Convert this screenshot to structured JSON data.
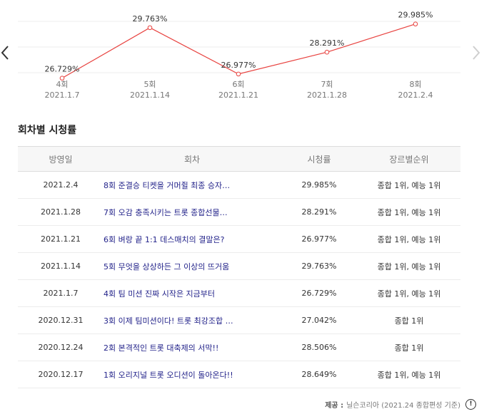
{
  "chart_data": {
    "type": "line",
    "categories": [
      "4회",
      "5회",
      "6회",
      "7회",
      "8회"
    ],
    "dates": [
      "2021.1.7",
      "2021.1.14",
      "2021.1.21",
      "2021.1.28",
      "2021.2.4"
    ],
    "values": [
      26.729,
      29.763,
      26.977,
      28.291,
      29.985
    ],
    "value_labels": [
      "26.729%",
      "29.763%",
      "26.977%",
      "28.291%",
      "29.985%"
    ],
    "ylim": [
      25.0,
      31.0
    ],
    "line_color": "#e8423f",
    "grid": true
  },
  "nav": {
    "prev_icon": "chevron-left-icon",
    "next_icon": "chevron-right-icon"
  },
  "section": {
    "title": "회차별 시청률"
  },
  "table": {
    "headers": [
      "방영일",
      "회차",
      "시청률",
      "장르별순위"
    ],
    "rows": [
      {
        "date": "2021.2.4",
        "title": "8회 준결승 티켓을 거머쥘 최종 승자…",
        "rating": "29.985%",
        "rank": "종합 1위, 예능 1위"
      },
      {
        "date": "2021.1.28",
        "title": "7회 오감 충족시키는 트롯 종합선물…",
        "rating": "28.291%",
        "rank": "종합 1위, 예능 1위"
      },
      {
        "date": "2021.1.21",
        "title": "6회 벼랑 끝 1:1 데스매치의 결말은?",
        "rating": "26.977%",
        "rank": "종합 1위, 예능 1위"
      },
      {
        "date": "2021.1.14",
        "title": "5회 무엇을 상상하든 그 이상의 뜨거움",
        "rating": "29.763%",
        "rank": "종합 1위, 예능 1위"
      },
      {
        "date": "2021.1.7",
        "title": "4회 팀 미션 진짜 시작은 지금부터",
        "rating": "26.729%",
        "rank": "종합 1위, 예능 1위"
      },
      {
        "date": "2020.12.31",
        "title": "3회 이제 팀미션이다! 트롯 최강조합 …",
        "rating": "27.042%",
        "rank": "종합 1위"
      },
      {
        "date": "2020.12.24",
        "title": "2회 본격적인 트롯 대축제의 서막!!",
        "rating": "28.506%",
        "rank": "종합 1위"
      },
      {
        "date": "2020.12.17",
        "title": "1회 오리지널 트롯 오디션이 돌아온다!!",
        "rating": "28.649%",
        "rank": "종합 1위, 예능 1위"
      }
    ]
  },
  "source": {
    "label": "제공 :",
    "text": "닐슨코리아 (2021.24 종합편성 기준)",
    "info_icon": "info-icon",
    "info_glyph": "!"
  }
}
